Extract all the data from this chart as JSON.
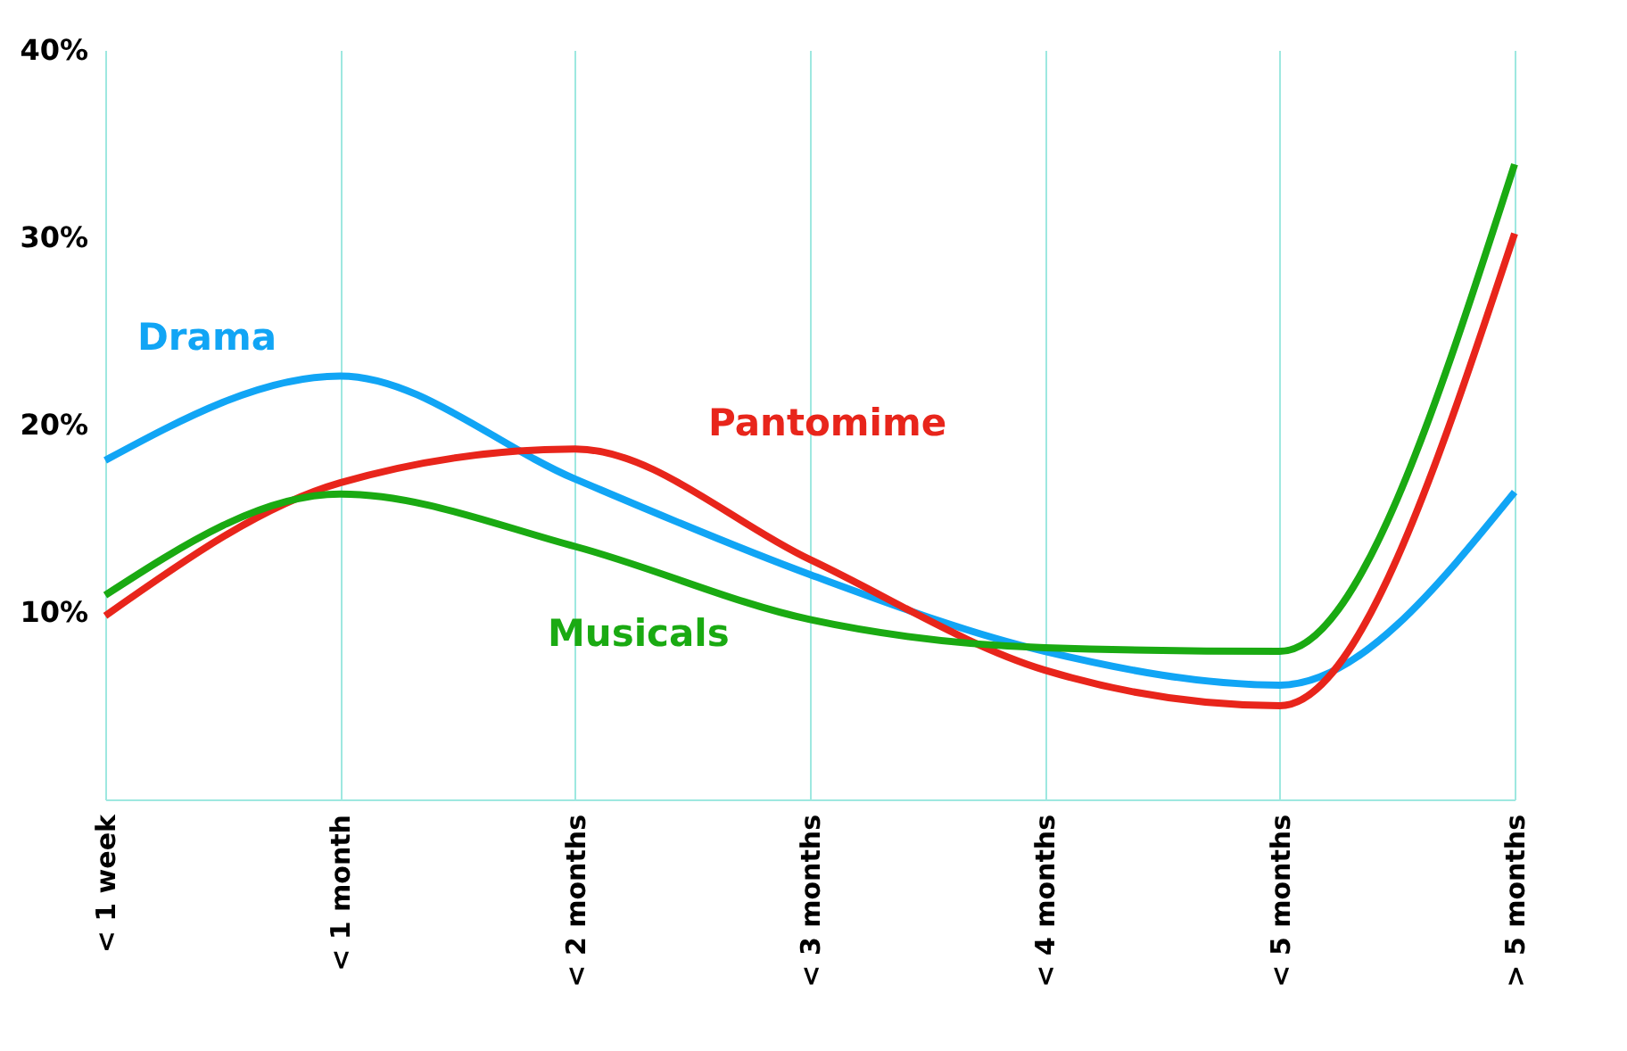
{
  "chart_data": {
    "type": "line",
    "categories": [
      "< 1 week",
      "< 1 month",
      "< 2 months",
      "< 3 months",
      "< 4 months",
      "< 5 months",
      "> 5 months"
    ],
    "series": [
      {
        "name": "Drama",
        "color": "#11a5f5",
        "values": [
          18.1,
          22.6,
          17.1,
          12.0,
          7.9,
          6.1,
          16.4
        ]
      },
      {
        "name": "Pantomime",
        "color": "#e8251b",
        "values": [
          9.8,
          16.9,
          18.7,
          12.8,
          6.9,
          5.0,
          30.2
        ]
      },
      {
        "name": "Musicals",
        "color": "#1aaa12",
        "values": [
          10.9,
          16.3,
          13.5,
          9.6,
          8.1,
          7.9,
          33.9
        ]
      }
    ],
    "ylim": [
      0,
      40
    ],
    "yticks": [
      {
        "value": 10,
        "label": "10%"
      },
      {
        "value": 20,
        "label": "20%"
      },
      {
        "value": 30,
        "label": "30%"
      },
      {
        "value": 40,
        "label": "40%"
      }
    ],
    "grid": "x",
    "legend": false,
    "marker": "none",
    "line_style": "solid"
  }
}
